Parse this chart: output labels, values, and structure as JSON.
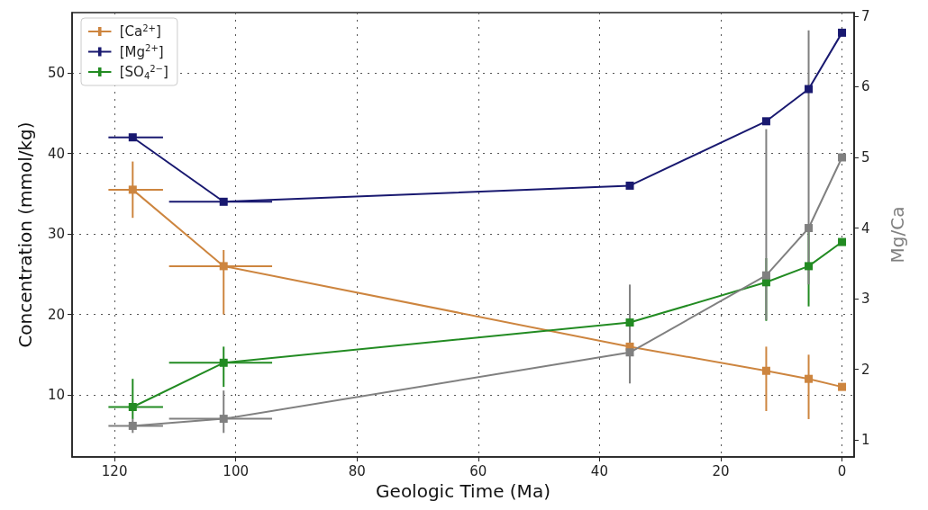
{
  "chart_data": {
    "type": "line",
    "xlabel": "Geologic Time (Ma)",
    "ylabel": "Concentration (mmol/kg)",
    "y2label": "Mg/Ca",
    "xlim": [
      127,
      -2
    ],
    "xticks": [
      120,
      100,
      80,
      60,
      40,
      20,
      0
    ],
    "ylim": [
      2.3,
      57.5
    ],
    "yticks": [
      10,
      20,
      30,
      40,
      50
    ],
    "y2lim": [
      0.76,
      7.05
    ],
    "y2ticks": [
      1,
      2,
      3,
      4,
      5,
      6,
      7
    ],
    "grid": true,
    "legend": "top left",
    "marker": "square",
    "line_style": "solid",
    "series": [
      {
        "name": "[Ca$^{2+}$]",
        "color": "#cd853f",
        "x": [
          117,
          102,
          35,
          12.5,
          5.5,
          0
        ],
        "values": [
          35.5,
          26,
          16,
          13,
          12,
          11
        ],
        "errors": [
          [
            32,
            39
          ],
          [
            20,
            28
          ],
          null,
          [
            8,
            16
          ],
          [
            7,
            15
          ],
          null
        ],
        "xerrors": [
          [
            112,
            121
          ],
          [
            94,
            111
          ],
          null,
          null,
          null,
          null
        ]
      },
      {
        "name": "[Mg$^{2+}$]",
        "color": "#191970",
        "x": [
          117,
          102,
          35,
          12.5,
          5.5,
          0
        ],
        "values": [
          42,
          34,
          36,
          44,
          48,
          55
        ],
        "xerrors": [
          [
            112,
            121
          ],
          [
            94,
            111
          ],
          null,
          null,
          null,
          null
        ]
      },
      {
        "name": "[SO$_{4}$$^{2−}$]",
        "color": "#228b22",
        "x": [
          117,
          102,
          35,
          12.5,
          5.5,
          0
        ],
        "values": [
          8.5,
          14,
          19,
          24,
          26,
          29
        ],
        "errors": [
          [
            7,
            12
          ],
          [
            11,
            16
          ],
          null,
          [
            19.2,
            27
          ],
          [
            21,
            31
          ],
          null
        ],
        "xerrors": [
          [
            112,
            121
          ],
          [
            94,
            111
          ],
          null,
          null,
          null,
          null
        ]
      },
      {
        "color": "#808080",
        "axis": "y2",
        "x": [
          117,
          102,
          35,
          12.5,
          5.5,
          0
        ],
        "values": [
          1.2,
          1.3,
          2.24,
          3.33,
          4.0,
          5.0
        ],
        "errors": [
          [
            1.1,
            1.3
          ],
          [
            1.1,
            1.7
          ],
          [
            1.8,
            3.2
          ],
          [
            2.7,
            5.4
          ],
          [
            3.2,
            6.8
          ],
          null
        ],
        "xerrors": [
          [
            112,
            121
          ],
          [
            94,
            111
          ],
          null,
          null,
          null,
          null
        ]
      }
    ]
  }
}
